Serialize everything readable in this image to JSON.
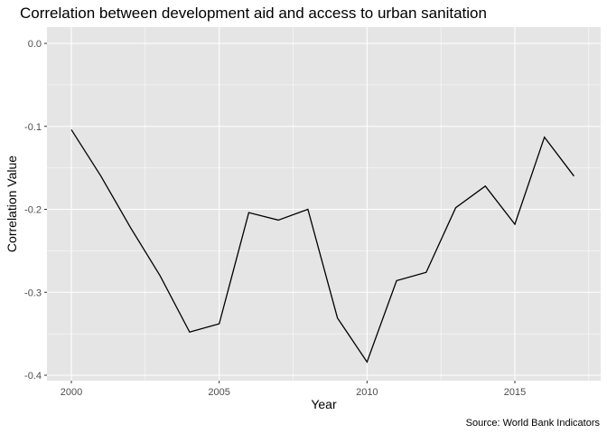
{
  "chart_data": {
    "type": "line",
    "title": "Correlation between development aid and access to urban sanitation",
    "xlabel": "Year",
    "ylabel": "Correlation Value",
    "caption": "Source: World Bank Indicators",
    "xlim": [
      1999.8,
      2017.8
    ],
    "ylim": [
      -0.4,
      0.0
    ],
    "x_ticks": [
      2000,
      2005,
      2010,
      2015
    ],
    "x_tick_labels": [
      "2000",
      "2005",
      "2010",
      "2015"
    ],
    "y_ticks": [
      0.0,
      -0.1,
      -0.2,
      -0.3,
      -0.4
    ],
    "y_tick_labels": [
      "0.0",
      "-0.1",
      "-0.2",
      "-0.3",
      "-0.4"
    ],
    "grid": true,
    "colors": {
      "panel": "#e5e5e5",
      "grid": "#ffffff",
      "line": "#000000"
    },
    "x": [
      2000,
      2001,
      2002,
      2003,
      2004,
      2005,
      2006,
      2007,
      2008,
      2009,
      2010,
      2011,
      2012,
      2013,
      2014,
      2015,
      2016,
      2017
    ],
    "y": [
      -0.104,
      -0.16,
      -0.222,
      -0.28,
      -0.348,
      -0.338,
      -0.204,
      -0.213,
      -0.2,
      -0.331,
      -0.384,
      -0.286,
      -0.276,
      -0.198,
      -0.172,
      -0.218,
      -0.113,
      -0.16
    ]
  }
}
